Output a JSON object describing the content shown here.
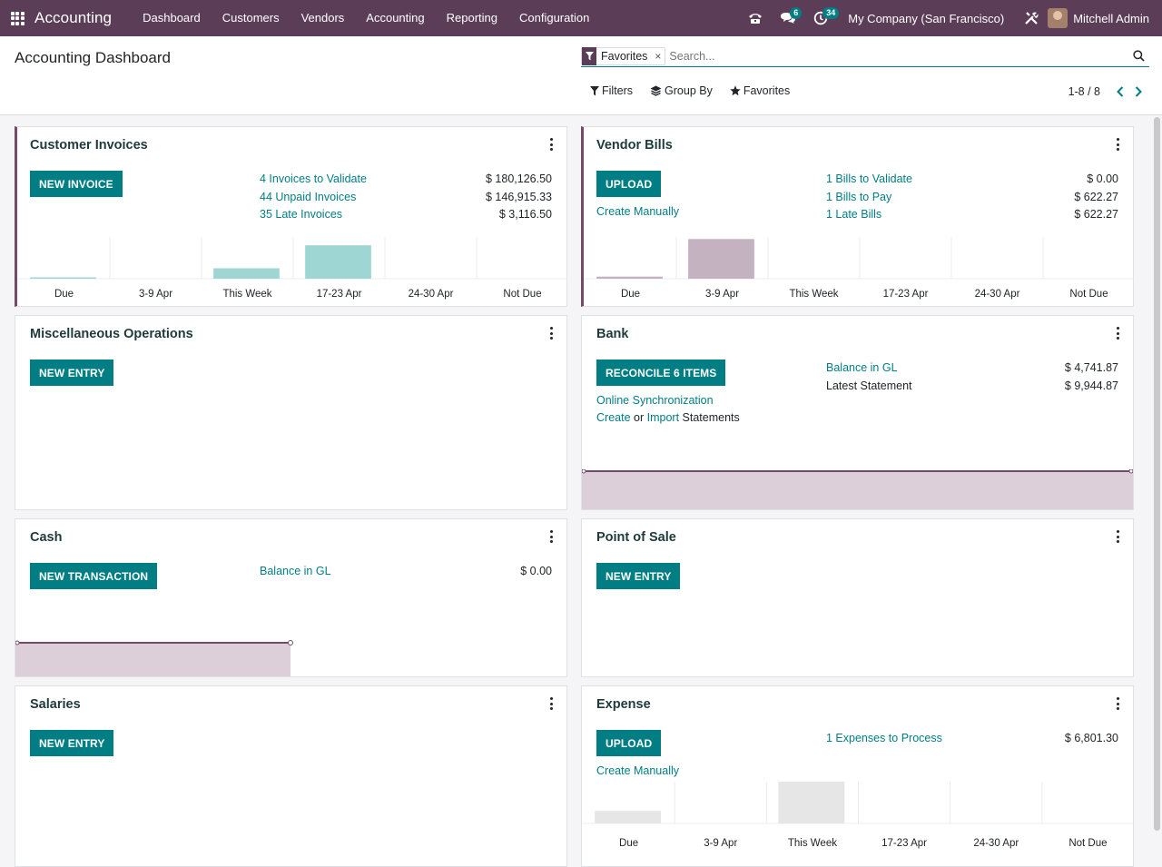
{
  "navbar": {
    "brand": "Accounting",
    "menu": [
      "Dashboard",
      "Customers",
      "Vendors",
      "Accounting",
      "Reporting",
      "Configuration"
    ],
    "messages_count": "6",
    "activities_count": "34",
    "company": "My Company (San Francisco)",
    "user": "Mitchell Admin"
  },
  "control_panel": {
    "title": "Accounting Dashboard",
    "facet_label": "Favorites",
    "facet_close": "×",
    "search_placeholder": "Search...",
    "filters_label": "Filters",
    "groupby_label": "Group By",
    "favorites_label": "Favorites",
    "pager": "1-8 / 8"
  },
  "cards": {
    "customer_invoices": {
      "title": "Customer Invoices",
      "button": "NEW INVOICE",
      "stats": [
        {
          "label": "4 Invoices to Validate",
          "amount": "$ 180,126.50"
        },
        {
          "label": "44 Unpaid Invoices",
          "amount": "$ 146,915.33"
        },
        {
          "label": "35 Late Invoices",
          "amount": "$ 3,116.50"
        }
      ],
      "chart_labels": [
        "Due",
        "3-9 Apr",
        "This Week",
        "17-23 Apr",
        "24-30 Apr",
        "Not Due"
      ]
    },
    "vendor_bills": {
      "title": "Vendor Bills",
      "button": "UPLOAD",
      "secondary": "Create Manually",
      "stats": [
        {
          "label": "1 Bills to Validate",
          "amount": "$ 0.00"
        },
        {
          "label": "1 Bills to Pay",
          "amount": "$ 622.27"
        },
        {
          "label": "1 Late Bills",
          "amount": "$ 622.27"
        }
      ],
      "chart_labels": [
        "Due",
        "3-9 Apr",
        "This Week",
        "17-23 Apr",
        "24-30 Apr",
        "Not Due"
      ]
    },
    "misc": {
      "title": "Miscellaneous Operations",
      "button": "NEW ENTRY"
    },
    "bank": {
      "title": "Bank",
      "button": "RECONCILE 6 ITEMS",
      "online_sync": "Online Synchronization",
      "create": "Create",
      "or": "or",
      "import": "Import",
      "statements": "Statements",
      "stats": [
        {
          "label": "Balance in GL",
          "amount": "$ 4,741.87"
        },
        {
          "label": "Latest Statement",
          "amount": "$ 9,944.87"
        }
      ]
    },
    "cash": {
      "title": "Cash",
      "button": "NEW TRANSACTION",
      "stats": [
        {
          "label": "Balance in GL",
          "amount": "$ 0.00"
        }
      ]
    },
    "pos": {
      "title": "Point of Sale",
      "button": "NEW ENTRY"
    },
    "salaries": {
      "title": "Salaries",
      "button": "NEW ENTRY"
    },
    "expense": {
      "title": "Expense",
      "button": "UPLOAD",
      "secondary": "Create Manually",
      "stats": [
        {
          "label": "1 Expenses to Process",
          "amount": "$ 6,801.30"
        }
      ],
      "chart_labels": [
        "Due",
        "3-9 Apr",
        "This Week",
        "17-23 Apr",
        "24-30 Apr",
        "Not Due"
      ]
    }
  },
  "colors": {
    "navbar": "#5c3d57",
    "primary": "#017e84",
    "accent": "#714b67",
    "invoice_bar": "#9dd6d2",
    "bill_bar": "#c4b2c1",
    "bank_fill": "#dccfd9"
  },
  "chart_data": [
    {
      "type": "bar",
      "categories": [
        "Due",
        "3-9 Apr",
        "This Week",
        "17-23 Apr",
        "24-30 Apr",
        "Not Due"
      ],
      "values": [
        0.03,
        0,
        0.25,
        0.8,
        0,
        0
      ]
    },
    {
      "type": "bar",
      "categories": [
        "Due",
        "3-9 Apr",
        "This Week",
        "17-23 Apr",
        "24-30 Apr",
        "Not Due"
      ],
      "values": [
        0.05,
        0.95,
        0,
        0,
        0,
        0
      ]
    },
    {
      "type": "bar",
      "categories": [
        "Due",
        "3-9 Apr",
        "This Week",
        "17-23 Apr",
        "24-30 Apr",
        "Not Due"
      ],
      "values": [
        0.3,
        0,
        1,
        0,
        0,
        0
      ]
    }
  ]
}
